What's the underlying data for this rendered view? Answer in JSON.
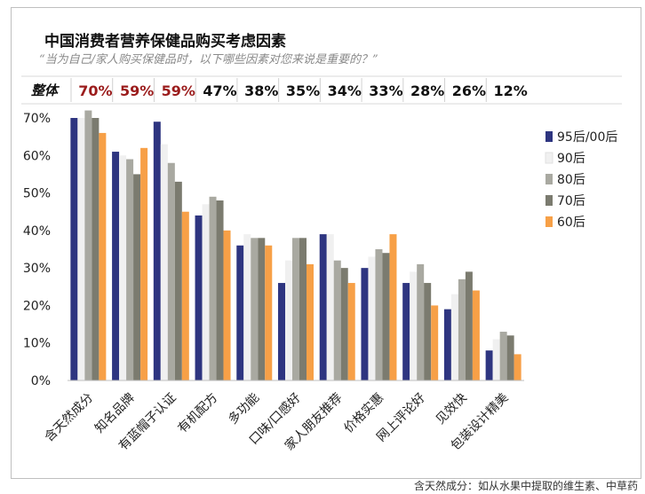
{
  "title": "中国消费者营养保健品购买考虑因素",
  "subtitle": "“当为自己/家人购买保健品时，以下哪些因素对您来说是重要的？”",
  "footnote": "含天然成分：如从水果中提取的维生素、中草药",
  "overall_label": "整体",
  "overall_values": [
    "70%",
    "59%",
    "59%",
    "47%",
    "38%",
    "35%",
    "34%",
    "33%",
    "28%",
    "26%",
    "12%"
  ],
  "overall_highlight_color": "#9b1c1c",
  "overall_normal_color": "#111111",
  "overall_highlight_count": 3,
  "chart_data": {
    "type": "bar",
    "title": "中国消费者营养保健品购买考虑因素",
    "xlabel": "",
    "ylabel": "",
    "ylim": [
      0,
      70
    ],
    "yticks": [
      "0%",
      "10%",
      "20%",
      "30%",
      "40%",
      "50%",
      "60%",
      "70%"
    ],
    "grid": false,
    "legend_position": "right",
    "categories": [
      "含天然成分",
      "知名品牌",
      "有蓝帽子认证",
      "有机配方",
      "多功能",
      "口味/口感好",
      "家人朋友推荐",
      "价格实惠",
      "网上评论好",
      "见效快",
      "包装设计精美"
    ],
    "series": [
      {
        "name": "95后/00后",
        "color": "#2e3580",
        "values": [
          70,
          61,
          69,
          44,
          36,
          26,
          39,
          30,
          26,
          19,
          8
        ]
      },
      {
        "name": "90后",
        "color": "#f0f0f0",
        "values": [
          70,
          60,
          63,
          47,
          39,
          32,
          39,
          33,
          29,
          23,
          11
        ]
      },
      {
        "name": "80后",
        "color": "#a9a9a1",
        "values": [
          72,
          59,
          58,
          49,
          38,
          38,
          32,
          35,
          31,
          27,
          13
        ]
      },
      {
        "name": "70后",
        "color": "#7b7b6f",
        "values": [
          70,
          55,
          53,
          48,
          38,
          38,
          30,
          34,
          26,
          29,
          12
        ]
      },
      {
        "name": "60后",
        "color": "#f7a047",
        "values": [
          66,
          62,
          45,
          40,
          36,
          31,
          26,
          39,
          20,
          24,
          7
        ]
      }
    ]
  }
}
